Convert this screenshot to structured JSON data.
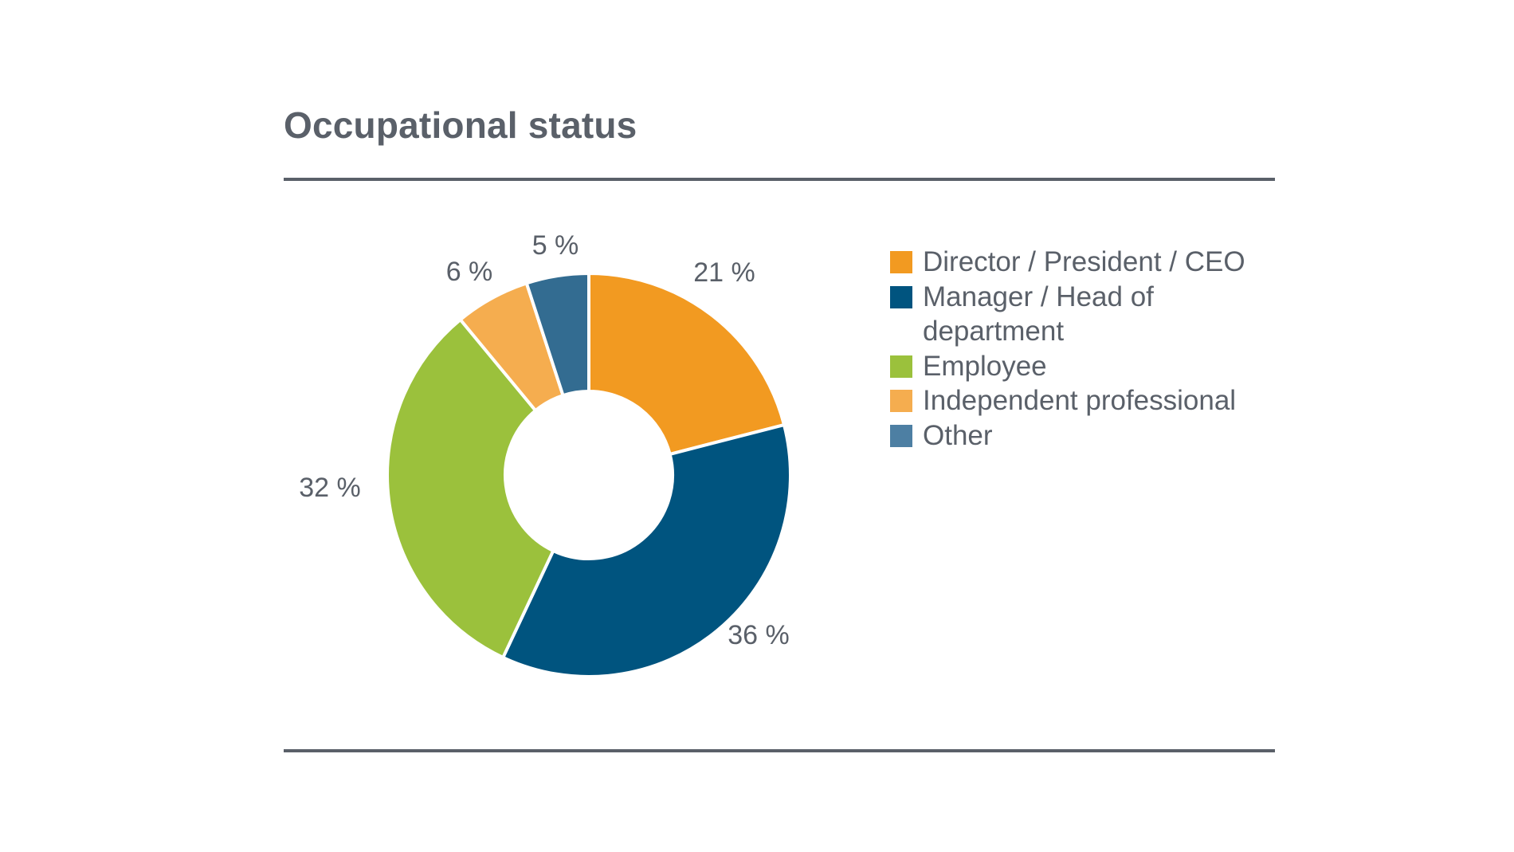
{
  "title": "Occupational status",
  "chart_data": {
    "type": "pie",
    "title": "Occupational status",
    "categories": [
      "Director / President / CEO",
      "Manager / Head of department",
      "Employee",
      "Independent professional",
      "Other"
    ],
    "values": [
      21,
      36,
      32,
      6,
      5
    ],
    "labels": [
      "21 %",
      "36 %",
      "32 %",
      "6 %",
      "5 %"
    ],
    "colors": [
      "#f29a21",
      "#00547f",
      "#9bc13c",
      "#f5ad4f",
      "#336c91"
    ],
    "unit": "%",
    "donut": true,
    "legend_position": "right"
  },
  "legend": [
    {
      "label": "Director / President / CEO",
      "color": "#f29a21"
    },
    {
      "label": "Manager / Head of department",
      "color": "#00547f"
    },
    {
      "label": "Employee",
      "color": "#9bc13c"
    },
    {
      "label": "Independent professional",
      "color": "#f5ad4f"
    },
    {
      "label": "Other",
      "color": "#4d7fa3"
    }
  ]
}
